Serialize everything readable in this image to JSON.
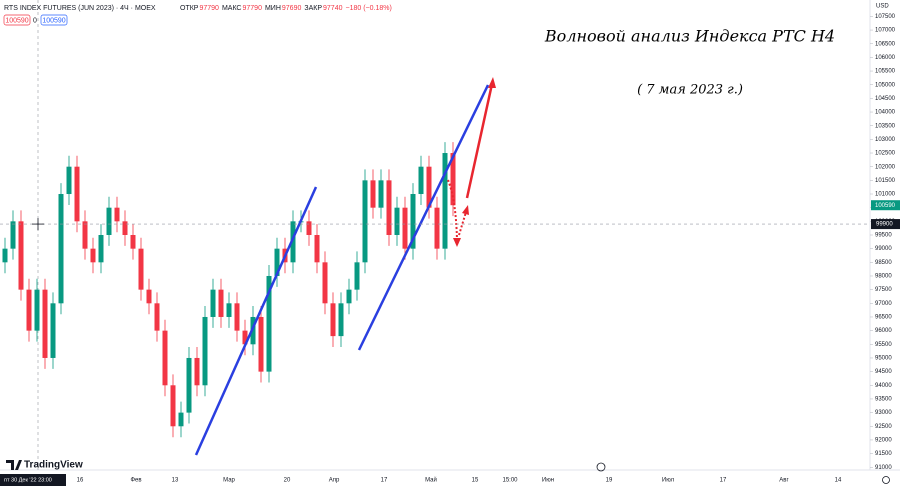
{
  "chart_data": {
    "type": "candlestick",
    "title": "RTS INDEX FUTURES (JUN 2023) · 4Ч · MOEX",
    "ohlc_header": [
      {
        "label": "ОТКР",
        "value": 97790
      },
      {
        "label": "МАКС",
        "value": 97790
      },
      {
        "label": "МИН",
        "value": 97690
      },
      {
        "label": "ЗАКР",
        "value": 97740
      }
    ],
    "change": "−180 (−0.18%)",
    "header_boxes": [
      "100590",
      "0",
      "100590"
    ],
    "annotation_title": "Волновой анализ Индекса РТС Н4",
    "annotation_date": "( 7 мая 2023 г.)",
    "currency": "USD",
    "brand": "TradingView",
    "crosshair_time": "пт 30 Дек '22  23:00",
    "x_labels": [
      "16",
      "Фев",
      "13",
      "Мар",
      "20",
      "Апр",
      "17",
      "Май",
      "15",
      "15:00",
      "Июн",
      "19",
      "Июл",
      "17",
      "Авг",
      "14"
    ],
    "colors": {
      "up": "#089981",
      "down": "#f23645"
    },
    "open": [
      98500,
      99000,
      100000,
      97500,
      96000,
      97500,
      95000,
      97000,
      101000,
      102000,
      100000,
      99000,
      98500,
      99500,
      100500,
      100000,
      99500,
      99000,
      97500,
      97000,
      96000,
      94000,
      92500,
      93000,
      95000,
      94000,
      96500,
      97500,
      96500,
      97000,
      96000,
      95500,
      96500,
      94500,
      98000,
      99000,
      98500,
      100000,
      100000,
      99500,
      98500,
      97000,
      95800,
      97000,
      97500,
      98500,
      101500,
      100500,
      101500,
      99500,
      100500,
      99000,
      101000,
      102000,
      100500,
      99000,
      102500
    ],
    "high": [
      99400,
      100400,
      100400,
      97900,
      97900,
      97900,
      97400,
      101400,
      102400,
      102400,
      100400,
      99400,
      99900,
      100900,
      100900,
      100400,
      99900,
      99400,
      97900,
      97400,
      96400,
      94400,
      93400,
      95400,
      95400,
      96900,
      97900,
      97900,
      97400,
      97400,
      96400,
      96900,
      96900,
      98400,
      99400,
      99400,
      100400,
      100400,
      100400,
      99900,
      98900,
      97400,
      97400,
      97900,
      98900,
      101900,
      101900,
      101900,
      101900,
      100900,
      100900,
      101400,
      102400,
      102400,
      100900,
      102900,
      102900
    ],
    "low": [
      98100,
      98600,
      97100,
      95600,
      95600,
      94600,
      94600,
      96600,
      100600,
      99600,
      98600,
      98100,
      98100,
      99100,
      99600,
      99100,
      98600,
      97100,
      96600,
      95600,
      93600,
      92100,
      92100,
      92600,
      93600,
      93600,
      96100,
      96100,
      96100,
      95600,
      95100,
      95100,
      94100,
      94100,
      97600,
      98100,
      98100,
      99600,
      99100,
      98100,
      96600,
      95400,
      95400,
      96600,
      97100,
      98100,
      100100,
      100100,
      99100,
      99100,
      98600,
      98600,
      100600,
      100100,
      98600,
      98600,
      100190
    ],
    "close": [
      99000,
      100000,
      97500,
      96000,
      97500,
      95000,
      97000,
      101000,
      102000,
      100000,
      99000,
      98500,
      99500,
      100500,
      100000,
      99500,
      99000,
      97500,
      97000,
      96000,
      94000,
      92500,
      93000,
      95000,
      94000,
      96500,
      97500,
      96500,
      97000,
      96000,
      95500,
      96500,
      94500,
      98000,
      99000,
      98500,
      100000,
      100000,
      99500,
      98500,
      97000,
      95800,
      97000,
      97500,
      98500,
      101500,
      100500,
      101500,
      99500,
      100500,
      99000,
      101000,
      102000,
      100500,
      99000,
      102500,
      100590
    ],
    "last_price": 100590,
    "crosshair_price": 99900,
    "ylim": [
      90900,
      108100
    ],
    "yticks": [
      91000,
      91500,
      92000,
      92500,
      93000,
      93500,
      94000,
      94500,
      95000,
      95500,
      96000,
      96500,
      97000,
      97500,
      98000,
      98500,
      99000,
      99500,
      100000,
      100500,
      101000,
      101500,
      102000,
      102500,
      103000,
      103500,
      104000,
      104500,
      105000,
      105500,
      106000,
      106500,
      107000,
      107500
    ]
  }
}
